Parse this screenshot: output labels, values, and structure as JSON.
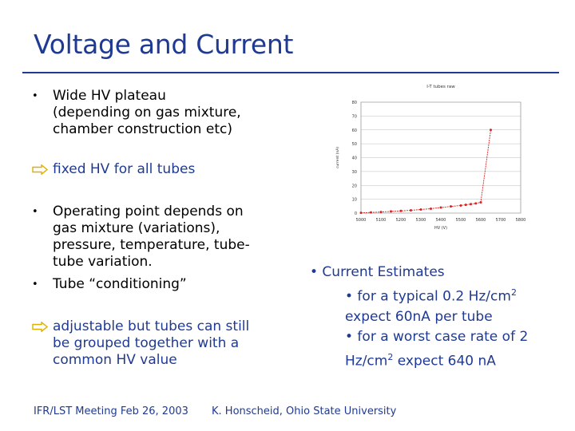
{
  "slide": {
    "title": "Voltage and Current",
    "bullets_top": [
      "Wide HV plateau",
      "(depending on gas mixture,",
      "chamber construction etc)"
    ],
    "arrow_1": "fixed HV for all tubes",
    "bullets_mid_1": [
      "Operating point depends on",
      "gas mixture (variations),",
      "pressure, temperature, tube-",
      "tube variation."
    ],
    "bullet_mid_2": "Tube “conditioning”",
    "arrow_2": [
      "adjustable but tubes can still",
      "be grouped together with a",
      "common HV value"
    ],
    "current_estimates": {
      "header": "• Current Estimates",
      "line1_pre": "• for a typical 0.2 Hz/cm",
      "line1_sup": "2",
      "line2": "expect 60nA per tube",
      "line3": "• for a worst case rate of 2",
      "line4_pre": "Hz/cm",
      "line4_sup": "2",
      "line4_post": " expect 640 nA"
    },
    "footer_left": "IFR/LST Meeting Feb 26, 2003",
    "footer_right": "K. Honscheid, Ohio State University",
    "colors": {
      "accent": "#1f3a93",
      "series": "#e02020"
    }
  },
  "chart_data": {
    "type": "line",
    "title": "I-T tubes raw",
    "xlabel": "HV (V)",
    "ylabel": "current (nA)",
    "yticks": [
      0,
      10,
      20,
      30,
      40,
      50,
      60,
      70,
      80
    ],
    "xticks": [
      "5000",
      "5100",
      "5200",
      "5300",
      "5400",
      "5500",
      "5600",
      "5700",
      "5800"
    ],
    "ylim": [
      0,
      80
    ],
    "xlim": [
      5000,
      5800
    ],
    "grid": true,
    "series": [
      {
        "x": [
          5000,
          5050,
          5100,
          5150,
          5200,
          5250,
          5300,
          5350,
          5400,
          5450,
          5500,
          5525,
          5550,
          5575,
          5600,
          5650
        ],
        "values": [
          0.2,
          0.5,
          0.8,
          1.2,
          1.6,
          2.0,
          2.6,
          3.2,
          4.0,
          4.8,
          5.5,
          6.0,
          6.5,
          7.0,
          7.8,
          60
        ]
      }
    ]
  }
}
